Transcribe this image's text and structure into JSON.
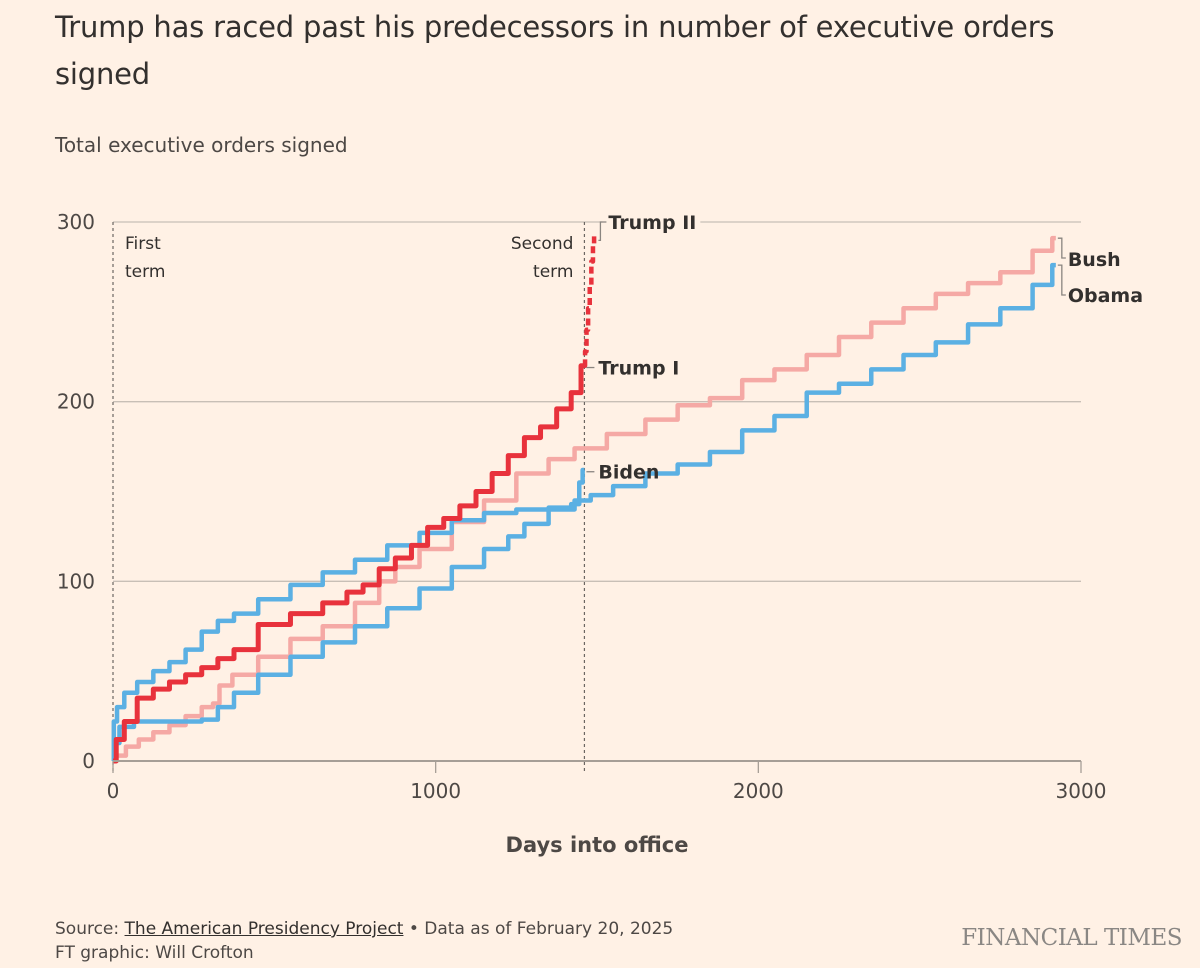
{
  "header": {
    "title": "Trump has raced past his predecessors in number of executive orders signed",
    "subtitle": "Total executive orders signed"
  },
  "footer": {
    "source_prefix": "Source: ",
    "source_link": "The American Presidency Project",
    "data_note": " • Data as of February 20, 2025",
    "credit": "FT graphic: Will Crofton",
    "brand": "FINANCIAL TIMES"
  },
  "colors": {
    "background": "#FFF1E5",
    "trump": "#E8323C",
    "bush": "#F5A9A5",
    "blue": "#5BB0E3",
    "grid": "#C8BFB6",
    "axis": "#A69E96"
  },
  "chart_data": {
    "type": "line",
    "title": "Trump has raced past his predecessors in number of executive orders signed",
    "subtitle": "Total executive orders signed",
    "xlabel": "Days into office",
    "ylabel": "Total executive orders signed",
    "xlim": [
      0,
      3000
    ],
    "ylim": [
      0,
      300
    ],
    "xticks": [
      0,
      1000,
      2000,
      3000
    ],
    "yticks": [
      0,
      100,
      200,
      300
    ],
    "grid": "horizontal",
    "annotations": [
      {
        "text": [
          "First",
          "term"
        ],
        "x": 0,
        "type": "vline"
      },
      {
        "text": [
          "Second",
          "term"
        ],
        "x": 1461,
        "type": "vline"
      }
    ],
    "series": [
      {
        "name": "Bush",
        "color": "#F5A9A5",
        "style": "solid",
        "x": [
          0,
          20,
          60,
          100,
          150,
          200,
          250,
          300,
          320,
          340,
          400,
          500,
          600,
          700,
          800,
          850,
          900,
          1000,
          1100,
          1200,
          1300,
          1400,
          1461,
          1600,
          1700,
          1800,
          1900,
          2000,
          2100,
          2200,
          2300,
          2400,
          2500,
          2600,
          2700,
          2800,
          2900,
          2922
        ],
        "y": [
          0,
          3,
          8,
          12,
          16,
          20,
          25,
          30,
          32,
          42,
          48,
          58,
          68,
          75,
          88,
          100,
          108,
          118,
          133,
          145,
          160,
          168,
          174,
          182,
          190,
          198,
          202,
          212,
          218,
          226,
          236,
          244,
          252,
          260,
          266,
          272,
          284,
          291
        ]
      },
      {
        "name": "Obama",
        "color": "#5BB0E3",
        "style": "solid",
        "x": [
          0,
          10,
          30,
          100,
          200,
          250,
          300,
          350,
          400,
          500,
          600,
          700,
          800,
          900,
          1000,
          1100,
          1200,
          1250,
          1300,
          1400,
          1461,
          1500,
          1600,
          1700,
          1800,
          1900,
          2000,
          2100,
          2200,
          2300,
          2400,
          2500,
          2600,
          2700,
          2800,
          2900,
          2922
        ],
        "y": [
          0,
          10,
          19,
          22,
          22,
          22,
          23,
          30,
          38,
          48,
          58,
          66,
          75,
          85,
          96,
          108,
          118,
          125,
          132,
          140,
          145,
          148,
          153,
          160,
          165,
          172,
          184,
          192,
          205,
          210,
          218,
          226,
          233,
          243,
          252,
          265,
          276
        ]
      },
      {
        "name": "Biden",
        "color": "#5BB0E3",
        "style": "solid",
        "x": [
          0,
          5,
          20,
          50,
          100,
          150,
          200,
          250,
          300,
          350,
          400,
          500,
          600,
          700,
          800,
          900,
          1000,
          1100,
          1200,
          1300,
          1400,
          1440,
          1450,
          1461
        ],
        "y": [
          0,
          22,
          30,
          38,
          44,
          50,
          55,
          62,
          72,
          78,
          82,
          90,
          98,
          105,
          112,
          120,
          127,
          134,
          138,
          140,
          141,
          143,
          155,
          162
        ]
      },
      {
        "name": "Trump I",
        "color": "#E8323C",
        "style": "solid",
        "x": [
          0,
          20,
          50,
          100,
          150,
          200,
          250,
          300,
          350,
          400,
          500,
          600,
          700,
          750,
          800,
          850,
          900,
          950,
          1000,
          1050,
          1100,
          1150,
          1200,
          1250,
          1300,
          1350,
          1400,
          1440,
          1461
        ],
        "y": [
          0,
          12,
          22,
          35,
          40,
          44,
          48,
          52,
          57,
          62,
          76,
          82,
          88,
          94,
          98,
          107,
          113,
          120,
          130,
          135,
          142,
          150,
          160,
          170,
          180,
          186,
          196,
          205,
          220
        ]
      },
      {
        "name": "Trump II",
        "color": "#E8323C",
        "style": "dashed",
        "x": [
          1461,
          1465,
          1470,
          1475,
          1480,
          1485,
          1490,
          1492
        ],
        "y": [
          220,
          228,
          240,
          252,
          265,
          278,
          288,
          292
        ]
      }
    ],
    "labels": [
      {
        "series": "Trump II",
        "text": "Trump II"
      },
      {
        "series": "Trump I",
        "text": "Trump I"
      },
      {
        "series": "Biden",
        "text": "Biden"
      },
      {
        "series": "Bush",
        "text": "Bush"
      },
      {
        "series": "Obama",
        "text": "Obama"
      }
    ]
  }
}
